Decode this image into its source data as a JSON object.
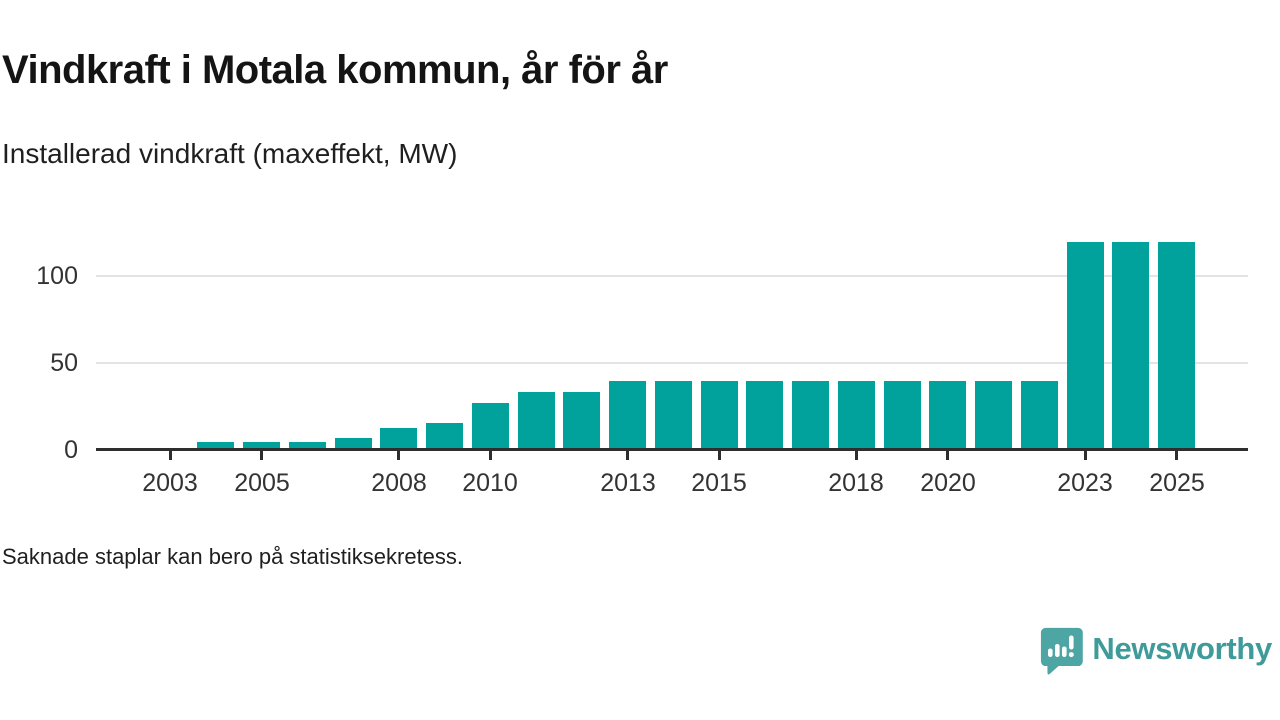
{
  "header": {
    "title": "Vindkraft i Motala kommun, år för år",
    "subtitle": "Installerad vindkraft (maxeffekt, MW)"
  },
  "footnote": "Saknade staplar kan bero på statistiksekretess.",
  "branding": {
    "name": "Newsworthy",
    "logo_icon": "speech-bubble-bar-chart-icon",
    "text_color": "#3f9a9a",
    "icon_color": "#4da5a4"
  },
  "chart_data": {
    "type": "bar",
    "title": "Vindkraft i Motala kommun, år för år",
    "subtitle": "Installerad vindkraft (maxeffekt, MW)",
    "unit": "MW",
    "x": [
      2004,
      2005,
      2006,
      2007,
      2008,
      2009,
      2010,
      2011,
      2012,
      2013,
      2014,
      2015,
      2016,
      2017,
      2018,
      2019,
      2020,
      2021,
      2022,
      2023,
      2024,
      2025
    ],
    "values": [
      3.4,
      3.4,
      3.4,
      6,
      11.5,
      14.5,
      26,
      32,
      32,
      38.5,
      38.5,
      38.5,
      38.5,
      38.5,
      38.5,
      38.5,
      38.5,
      38.5,
      38.5,
      118.5,
      118.5,
      118.5
    ],
    "xticks": [
      2003,
      2005,
      2008,
      2010,
      2013,
      2015,
      2018,
      2020,
      2023,
      2025
    ],
    "yticks": [
      0,
      50,
      100
    ],
    "ylim": [
      0,
      120
    ],
    "xlim": [
      2001.4,
      2026.6
    ],
    "grid": "horizontal",
    "legend": "none",
    "bar_color": "#00a29b",
    "axis_color": "#2e2e2e",
    "gridline_color": "#e4e4e4",
    "tick_label_color": "#333333",
    "note": "Saknade staplar kan bero på statistiksekretess."
  }
}
